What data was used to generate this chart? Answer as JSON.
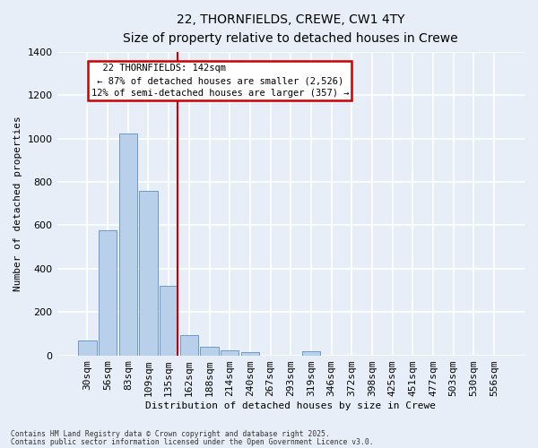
{
  "title_line1": "22, THORNFIELDS, CREWE, CW1 4TY",
  "title_line2": "Size of property relative to detached houses in Crewe",
  "xlabel": "Distribution of detached houses by size in Crewe",
  "ylabel": "Number of detached properties",
  "bar_labels": [
    "30sqm",
    "56sqm",
    "83sqm",
    "109sqm",
    "135sqm",
    "162sqm",
    "188sqm",
    "214sqm",
    "240sqm",
    "267sqm",
    "293sqm",
    "319sqm",
    "346sqm",
    "372sqm",
    "398sqm",
    "425sqm",
    "451sqm",
    "477sqm",
    "503sqm",
    "530sqm",
    "556sqm"
  ],
  "bar_values": [
    68,
    578,
    1022,
    757,
    320,
    92,
    38,
    25,
    15,
    0,
    0,
    18,
    0,
    0,
    0,
    0,
    0,
    0,
    0,
    0,
    0
  ],
  "bar_color": "#b8d0ea",
  "bar_edge_color": "#5b8fc9",
  "annotation_text_line1": "22 THORNFIELDS: 142sqm",
  "annotation_text_line2": "← 87% of detached houses are smaller (2,526)",
  "annotation_text_line3": "12% of semi-detached houses are larger (357) →",
  "red_line_bar_index": 4,
  "ylim": [
    0,
    1400
  ],
  "yticks": [
    0,
    200,
    400,
    600,
    800,
    1000,
    1200,
    1400
  ],
  "footer_line1": "Contains HM Land Registry data © Crown copyright and database right 2025.",
  "footer_line2": "Contains public sector information licensed under the Open Government Licence v3.0.",
  "bg_color": "#e8eef8",
  "grid_color": "#ffffff",
  "annotation_box_facecolor": "#ffffff",
  "annotation_box_edgecolor": "#cc0000",
  "red_line_color": "#cc0000",
  "title1_fontsize": 10,
  "title2_fontsize": 9,
  "axis_label_fontsize": 8,
  "tick_fontsize": 8,
  "annot_fontsize": 7.5
}
